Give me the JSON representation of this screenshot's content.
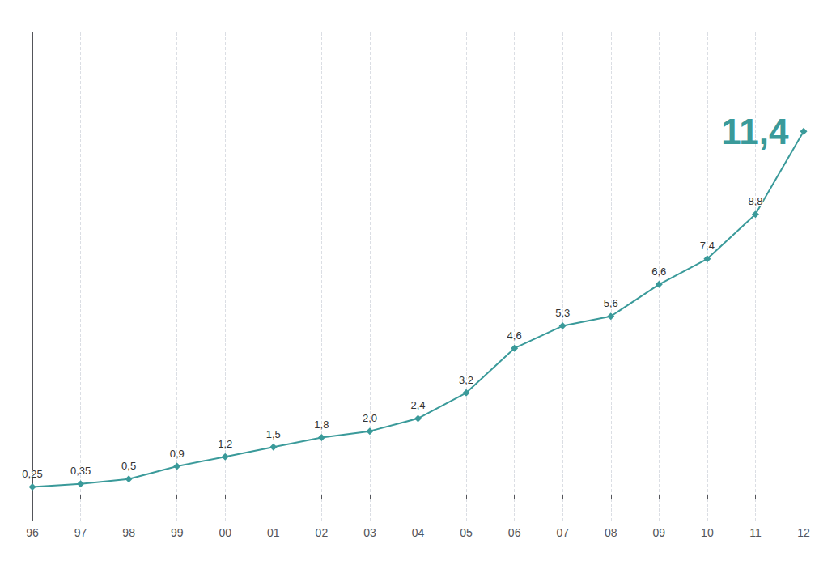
{
  "chart_data": {
    "type": "line",
    "categories": [
      "96",
      "97",
      "98",
      "99",
      "00",
      "01",
      "02",
      "03",
      "04",
      "05",
      "06",
      "07",
      "08",
      "09",
      "10",
      "11",
      "12"
    ],
    "values": [
      0.25,
      0.35,
      0.5,
      0.9,
      1.2,
      1.5,
      1.8,
      2.0,
      2.4,
      3.2,
      4.6,
      5.3,
      5.6,
      6.6,
      7.4,
      8.8,
      11.4
    ],
    "value_labels": [
      "0,25",
      "0,35",
      "0,5",
      "0,9",
      "1,2",
      "1,5",
      "1,8",
      "2,0",
      "2,4",
      "3,2",
      "4,6",
      "5,3",
      "5,6",
      "6,6",
      "7,4",
      "8,8",
      "11,4"
    ],
    "data_labels": true,
    "color": "#3a9a9a",
    "marker": "diamond",
    "ylim": [
      -0.8,
      14.5
    ],
    "tick_labels": "x",
    "grid": true
  }
}
